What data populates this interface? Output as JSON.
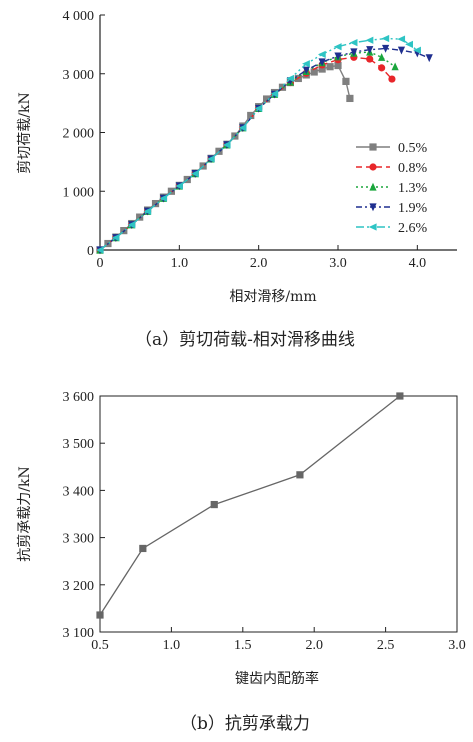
{
  "chart_data": [
    {
      "type": "line",
      "caption": "（a）剪切荷载-相对滑移曲线",
      "xlabel": "相对滑移/mm",
      "ylabel": "剪切荷载/kN",
      "xlim": [
        0,
        4.5
      ],
      "ylim": [
        0,
        4000
      ],
      "xticks": [
        {
          "v": 0,
          "label": "0"
        },
        {
          "v": 1,
          "label": "1.0"
        },
        {
          "v": 2,
          "label": "2.0"
        },
        {
          "v": 3,
          "label": "3.0"
        },
        {
          "v": 4,
          "label": "4.0"
        }
      ],
      "yticks": [
        {
          "v": 0,
          "label": "0"
        },
        {
          "v": 1000,
          "label": "1 000"
        },
        {
          "v": 2000,
          "label": "2 000"
        },
        {
          "v": 3000,
          "label": "3 000"
        },
        {
          "v": 4000,
          "label": "4 000"
        }
      ],
      "legend_position": "bottom-right",
      "series": [
        {
          "name": "0.5%",
          "color": "#7f7f7f",
          "marker": "square",
          "dash": "",
          "x": [
            0,
            0.1,
            0.2,
            0.3,
            0.4,
            0.5,
            0.6,
            0.7,
            0.8,
            0.9,
            1.0,
            1.1,
            1.2,
            1.3,
            1.4,
            1.5,
            1.6,
            1.7,
            1.8,
            1.9,
            2.0,
            2.1,
            2.2,
            2.3,
            2.4,
            2.5,
            2.6,
            2.7,
            2.8,
            2.9,
            3.0,
            3.1,
            3.15
          ],
          "y": [
            0,
            110,
            220,
            330,
            450,
            560,
            680,
            790,
            900,
            1000,
            1100,
            1200,
            1310,
            1430,
            1560,
            1680,
            1800,
            1940,
            2110,
            2290,
            2440,
            2570,
            2680,
            2770,
            2850,
            2920,
            2980,
            3030,
            3080,
            3120,
            3140,
            2870,
            2580
          ]
        },
        {
          "name": "0.8%",
          "color": "#e8262a",
          "marker": "circle",
          "dash": "6,4",
          "x": [
            0,
            0.2,
            0.4,
            0.6,
            0.8,
            1.0,
            1.2,
            1.4,
            1.6,
            1.8,
            2.0,
            2.2,
            2.4,
            2.6,
            2.8,
            3.0,
            3.2,
            3.4,
            3.55,
            3.68
          ],
          "y": [
            0,
            210,
            430,
            660,
            880,
            1090,
            1300,
            1550,
            1790,
            2080,
            2410,
            2650,
            2850,
            3010,
            3150,
            3240,
            3280,
            3250,
            3100,
            2910
          ]
        },
        {
          "name": "1.3%",
          "color": "#1aa63c",
          "marker": "triangle-up",
          "dash": "2,3",
          "x": [
            0,
            0.2,
            0.4,
            0.6,
            0.8,
            1.0,
            1.2,
            1.4,
            1.6,
            1.8,
            2.0,
            2.2,
            2.4,
            2.6,
            2.8,
            3.0,
            3.2,
            3.4,
            3.55,
            3.72
          ],
          "y": [
            0,
            210,
            430,
            660,
            880,
            1090,
            1300,
            1550,
            1790,
            2080,
            2410,
            2650,
            2860,
            3040,
            3190,
            3290,
            3350,
            3370,
            3280,
            3120
          ]
        },
        {
          "name": "1.9%",
          "color": "#1f2f8f",
          "marker": "triangle-down",
          "dash": "6,3,2,3",
          "x": [
            0,
            0.2,
            0.4,
            0.6,
            0.8,
            1.0,
            1.2,
            1.4,
            1.6,
            1.8,
            2.0,
            2.2,
            2.4,
            2.6,
            2.8,
            3.0,
            3.2,
            3.4,
            3.6,
            3.8,
            4.0,
            4.15
          ],
          "y": [
            0,
            210,
            430,
            660,
            880,
            1090,
            1300,
            1550,
            1790,
            2080,
            2410,
            2650,
            2880,
            3060,
            3200,
            3300,
            3370,
            3410,
            3430,
            3400,
            3350,
            3270
          ]
        },
        {
          "name": "2.6%",
          "color": "#2ec4c4",
          "marker": "triangle-left",
          "dash": "8,3,2,3,2,3",
          "x": [
            0,
            0.2,
            0.4,
            0.6,
            0.8,
            1.0,
            1.2,
            1.4,
            1.6,
            1.8,
            2.0,
            2.2,
            2.4,
            2.6,
            2.8,
            3.0,
            3.2,
            3.4,
            3.6,
            3.8,
            3.9,
            4.0
          ],
          "y": [
            0,
            210,
            430,
            660,
            880,
            1090,
            1300,
            1550,
            1790,
            2080,
            2410,
            2660,
            2920,
            3170,
            3330,
            3460,
            3530,
            3570,
            3600,
            3590,
            3500,
            3400
          ]
        }
      ]
    },
    {
      "type": "line",
      "caption": "（b）抗剪承载力",
      "xlabel": "键齿内配筋率",
      "ylabel": "抗剪承载力/kN",
      "xlim": [
        0.5,
        3.0
      ],
      "ylim": [
        3100,
        3600
      ],
      "xticks": [
        {
          "v": 0.5,
          "label": "0.5"
        },
        {
          "v": 1.0,
          "label": "1.0"
        },
        {
          "v": 1.5,
          "label": "1.5"
        },
        {
          "v": 2.0,
          "label": "2.0"
        },
        {
          "v": 2.5,
          "label": "2.5"
        },
        {
          "v": 3.0,
          "label": "3.0"
        }
      ],
      "yticks": [
        {
          "v": 3100,
          "label": "3 100"
        },
        {
          "v": 3200,
          "label": "3 200"
        },
        {
          "v": 3300,
          "label": "3 300"
        },
        {
          "v": 3400,
          "label": "3 400"
        },
        {
          "v": 3500,
          "label": "3 500"
        },
        {
          "v": 3600,
          "label": "3 600"
        }
      ],
      "series": [
        {
          "color": "#666666",
          "marker": "square",
          "dash": "",
          "x": [
            0.5,
            0.8,
            1.3,
            1.9,
            2.6
          ],
          "y": [
            3136,
            3277,
            3370,
            3433,
            3600
          ]
        }
      ]
    }
  ]
}
